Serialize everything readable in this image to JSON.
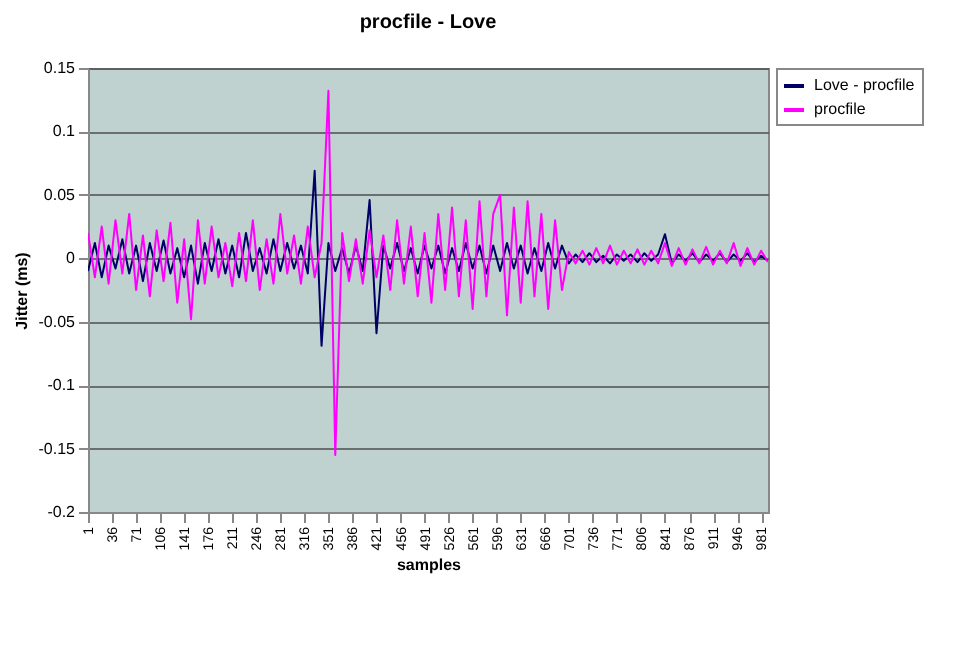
{
  "chart_data": {
    "type": "line",
    "title": "procfile - Love",
    "xlabel": "samples",
    "ylabel": "Jitter (ms)",
    "x": [
      1,
      11,
      21,
      31,
      41,
      51,
      61,
      71,
      81,
      91,
      101,
      111,
      121,
      131,
      141,
      151,
      161,
      171,
      181,
      191,
      201,
      211,
      221,
      231,
      241,
      251,
      261,
      271,
      281,
      291,
      301,
      311,
      321,
      331,
      341,
      351,
      361,
      371,
      381,
      391,
      401,
      411,
      421,
      431,
      441,
      451,
      461,
      471,
      481,
      491,
      501,
      511,
      521,
      531,
      541,
      551,
      561,
      571,
      581,
      591,
      601,
      611,
      621,
      631,
      641,
      651,
      661,
      671,
      681,
      691,
      701,
      711,
      721,
      731,
      741,
      751,
      761,
      771,
      781,
      791,
      801,
      811,
      821,
      831,
      841,
      851,
      861,
      871,
      881,
      891,
      901,
      911,
      921,
      931,
      941,
      951,
      961,
      971,
      981,
      991
    ],
    "series": [
      {
        "name": "Love - procfile",
        "color": "#000066",
        "values": [
          -0.01,
          0.012,
          -0.015,
          0.01,
          -0.008,
          0.015,
          -0.012,
          0.01,
          -0.018,
          0.012,
          -0.01,
          0.014,
          -0.012,
          0.008,
          -0.015,
          0.01,
          -0.02,
          0.012,
          -0.01,
          0.015,
          -0.012,
          0.01,
          -0.015,
          0.02,
          -0.01,
          0.008,
          -0.012,
          0.015,
          -0.01,
          0.012,
          -0.008,
          0.01,
          -0.012,
          0.069,
          -0.069,
          0.012,
          -0.01,
          0.008,
          -0.012,
          0.01,
          -0.01,
          0.046,
          -0.059,
          0.01,
          -0.008,
          0.012,
          -0.01,
          0.008,
          -0.012,
          0.01,
          -0.008,
          0.01,
          -0.012,
          0.008,
          -0.01,
          0.012,
          -0.008,
          0.01,
          -0.012,
          0.01,
          -0.01,
          0.012,
          -0.008,
          0.01,
          -0.012,
          0.008,
          -0.01,
          0.012,
          -0.008,
          0.01,
          -0.004,
          0.003,
          -0.003,
          0.004,
          -0.003,
          0.002,
          -0.004,
          0.003,
          -0.002,
          0.003,
          -0.003,
          0.004,
          -0.002,
          0.003,
          0.019,
          -0.004,
          0.003,
          -0.002,
          0.004,
          -0.003,
          0.003,
          -0.002,
          0.004,
          -0.003,
          0.003,
          -0.002,
          0.004,
          -0.003,
          0.002,
          -0.002
        ]
      },
      {
        "name": "procfile",
        "color": "#ff00ff",
        "values": [
          0.02,
          -0.015,
          0.025,
          -0.02,
          0.03,
          -0.012,
          0.035,
          -0.025,
          0.018,
          -0.03,
          0.022,
          -0.018,
          0.028,
          -0.035,
          0.015,
          -0.048,
          0.03,
          -0.02,
          0.025,
          -0.015,
          0.012,
          -0.022,
          0.02,
          -0.018,
          0.03,
          -0.025,
          0.015,
          -0.02,
          0.035,
          -0.012,
          0.018,
          -0.02,
          0.025,
          -0.015,
          0.012,
          0.132,
          -0.155,
          0.02,
          -0.018,
          0.015,
          -0.02,
          0.022,
          -0.015,
          0.018,
          -0.025,
          0.03,
          -0.02,
          0.025,
          -0.03,
          0.02,
          -0.035,
          0.035,
          -0.025,
          0.04,
          -0.03,
          0.03,
          -0.04,
          0.045,
          -0.03,
          0.035,
          0.05,
          -0.045,
          0.04,
          -0.035,
          0.045,
          -0.03,
          0.035,
          -0.04,
          0.03,
          -0.025,
          0.005,
          -0.004,
          0.006,
          -0.005,
          0.008,
          -0.004,
          0.01,
          -0.005,
          0.006,
          -0.004,
          0.007,
          -0.005,
          0.006,
          -0.004,
          0.012,
          -0.006,
          0.008,
          -0.005,
          0.007,
          -0.004,
          0.009,
          -0.005,
          0.006,
          -0.004,
          0.012,
          -0.006,
          0.008,
          -0.005,
          0.006,
          -0.003
        ]
      }
    ],
    "xlim": [
      1,
      991
    ],
    "xticks": [
      1,
      36,
      71,
      106,
      141,
      176,
      211,
      246,
      281,
      316,
      351,
      386,
      421,
      456,
      491,
      526,
      561,
      596,
      631,
      666,
      701,
      736,
      771,
      806,
      841,
      876,
      911,
      946,
      981
    ],
    "ylim": [
      -0.2,
      0.15
    ],
    "yticks": [
      -0.2,
      -0.15,
      -0.1,
      -0.05,
      0,
      0.05,
      0.1,
      0.15
    ],
    "grid": "y",
    "legend": "right",
    "marker": "none",
    "line_style": "solid"
  }
}
